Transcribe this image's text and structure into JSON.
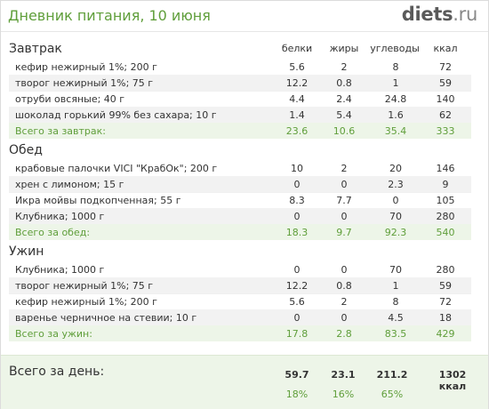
{
  "header": {
    "title": "Дневник питания, 10 июня",
    "logo_main": "diets",
    "logo_suffix": ".ru"
  },
  "columns": {
    "protein": "белки",
    "fat": "жиры",
    "carbs": "углеводы",
    "kcal": "ккал"
  },
  "sections": [
    {
      "title": "Завтрак",
      "rows": [
        {
          "name": "кефир нежирный 1%; 200 г",
          "protein": "5.6",
          "fat": "2",
          "carbs": "8",
          "kcal": "72"
        },
        {
          "name": "творог нежирный 1%; 75 г",
          "protein": "12.2",
          "fat": "0.8",
          "carbs": "1",
          "kcal": "59"
        },
        {
          "name": "отруби овсяные; 40 г",
          "protein": "4.4",
          "fat": "2.4",
          "carbs": "24.8",
          "kcal": "140"
        },
        {
          "name": "шоколад горький 99% без сахара; 10 г",
          "protein": "1.4",
          "fat": "5.4",
          "carbs": "1.6",
          "kcal": "62"
        }
      ],
      "total": {
        "name": "Всего за завтрак:",
        "protein": "23.6",
        "fat": "10.6",
        "carbs": "35.4",
        "kcal": "333"
      }
    },
    {
      "title": "Обед",
      "rows": [
        {
          "name": "крабовые палочки VICI \"КрабОк\"; 200 г",
          "protein": "10",
          "fat": "2",
          "carbs": "20",
          "kcal": "146"
        },
        {
          "name": "хрен с лимоном; 15 г",
          "protein": "0",
          "fat": "0",
          "carbs": "2.3",
          "kcal": "9"
        },
        {
          "name": "Икра мойвы подкопченная; 55 г",
          "protein": "8.3",
          "fat": "7.7",
          "carbs": "0",
          "kcal": "105"
        },
        {
          "name": "Клубника; 1000 г",
          "protein": "0",
          "fat": "0",
          "carbs": "70",
          "kcal": "280"
        }
      ],
      "total": {
        "name": "Всего за обед:",
        "protein": "18.3",
        "fat": "9.7",
        "carbs": "92.3",
        "kcal": "540"
      }
    },
    {
      "title": "Ужин",
      "rows": [
        {
          "name": "Клубника; 1000 г",
          "protein": "0",
          "fat": "0",
          "carbs": "70",
          "kcal": "280"
        },
        {
          "name": "творог нежирный 1%; 75 г",
          "protein": "12.2",
          "fat": "0.8",
          "carbs": "1",
          "kcal": "59"
        },
        {
          "name": "кефир нежирный 1%; 200 г",
          "protein": "5.6",
          "fat": "2",
          "carbs": "8",
          "kcal": "72"
        },
        {
          "name": "варенье черничное на стевии; 10 г",
          "protein": "0",
          "fat": "0",
          "carbs": "4.5",
          "kcal": "18"
        }
      ],
      "total": {
        "name": "Всего за ужин:",
        "protein": "17.8",
        "fat": "2.8",
        "carbs": "83.5",
        "kcal": "429"
      }
    }
  ],
  "day_total": {
    "label": "Всего за день:",
    "protein": "59.7",
    "fat": "23.1",
    "carbs": "211.2",
    "kcal": "1302 ккал",
    "protein_pct": "18%",
    "fat_pct": "16%",
    "carbs_pct": "65%"
  }
}
